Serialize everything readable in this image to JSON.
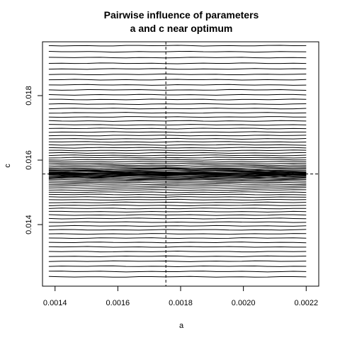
{
  "chart_data": {
    "type": "contour",
    "title_lines": [
      "Pairwise influence of parameters",
      "a and c near optimum"
    ],
    "xlabel": "a",
    "ylabel": "c",
    "xlim": [
      0.00136,
      0.00224
    ],
    "ylim": [
      0.01209,
      0.01967
    ],
    "x_ticks": [
      {
        "value": 0.0014,
        "label": "0.0014"
      },
      {
        "value": 0.0016,
        "label": "0.0016"
      },
      {
        "value": 0.0018,
        "label": "0.0018"
      },
      {
        "value": 0.002,
        "label": "0.0020"
      },
      {
        "value": 0.0022,
        "label": "0.0022"
      }
    ],
    "y_ticks": [
      {
        "value": 0.014,
        "label": "0.014"
      },
      {
        "value": 0.016,
        "label": "0.016"
      },
      {
        "value": 0.018,
        "label": "0.018"
      }
    ],
    "grid_x_range": [
      0.00138,
      0.0022
    ],
    "grid_c_range": [
      0.01238,
      0.01955
    ],
    "optimum": {
      "a": 0.001753,
      "c": 0.01557
    },
    "min_contour_ellipse": {
      "a_range": [
        0.00141,
        0.00216
      ],
      "c_half_height": 0.00017
    },
    "contour_count": 80,
    "reference_lines": "dashed lines at the optimum a and c",
    "colors": {
      "line": "#000000",
      "background": "#ffffff"
    }
  }
}
